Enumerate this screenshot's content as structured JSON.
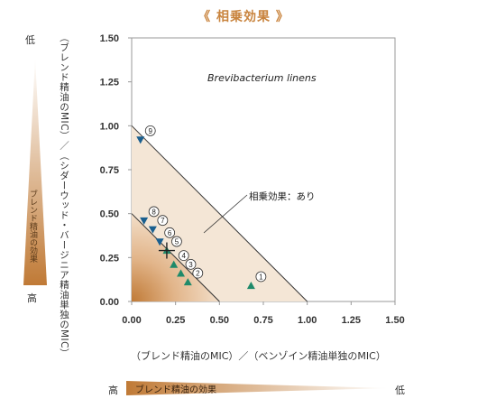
{
  "header": {
    "title": "《 相乗効果 》"
  },
  "left_scale": {
    "low": "低",
    "high": "高",
    "bar_label": "ブレンド精油の効果"
  },
  "bottom_scale": {
    "high": "高",
    "low": "低",
    "bar_label": "ブレンド精油の効果"
  },
  "colors": {
    "accent": "#c9843e",
    "triangle_fill": "#f3e3d0",
    "gradient_dark": "#c07a36",
    "marker_blue": "#1a5f8f",
    "marker_green": "#1f8a6a"
  },
  "chart_data": {
    "type": "scatter",
    "title": "Brevibacterium linens",
    "xlabel": "（ブレンド精油のMIC）／（ベンゾイン精油単独のMIC）",
    "ylabel": "（ブレンド精油のMIC）／（シダーウッド・バージニア精油単独のMIC）",
    "xlim": [
      0,
      1.5
    ],
    "ylim": [
      0,
      1.5
    ],
    "xticks": [
      "0.00",
      "0.25",
      "0.50",
      "0.75",
      "1.00",
      "1.25",
      "1.50"
    ],
    "yticks": [
      "0.00",
      "0.25",
      "0.50",
      "0.75",
      "1.00",
      "1.25",
      "1.50"
    ],
    "annotation": "相乗効果：あり",
    "reference_lines": [
      {
        "from": [
          0,
          1.0
        ],
        "to": [
          1.0,
          0
        ]
      },
      {
        "from": [
          0,
          0.5
        ],
        "to": [
          0.5,
          0
        ]
      }
    ],
    "center_mark": {
      "x": 0.2,
      "y": 0.29,
      "symbol": "+"
    },
    "points": [
      {
        "label": "1",
        "x": 0.68,
        "y": 0.09,
        "marker": "up",
        "color": "green"
      },
      {
        "label": "2",
        "x": 0.32,
        "y": 0.11,
        "marker": "up",
        "color": "green"
      },
      {
        "label": "3",
        "x": 0.28,
        "y": 0.16,
        "marker": "up",
        "color": "green"
      },
      {
        "label": "4",
        "x": 0.24,
        "y": 0.21,
        "marker": "up",
        "color": "green"
      },
      {
        "label": "5",
        "x": 0.2,
        "y": 0.29,
        "marker": "up",
        "color": "green"
      },
      {
        "label": "6",
        "x": 0.16,
        "y": 0.34,
        "marker": "down",
        "color": "blue"
      },
      {
        "label": "7",
        "x": 0.12,
        "y": 0.41,
        "marker": "down",
        "color": "blue"
      },
      {
        "label": "8",
        "x": 0.07,
        "y": 0.46,
        "marker": "down",
        "color": "blue"
      },
      {
        "label": "9",
        "x": 0.05,
        "y": 0.92,
        "marker": "down",
        "color": "blue"
      }
    ]
  }
}
